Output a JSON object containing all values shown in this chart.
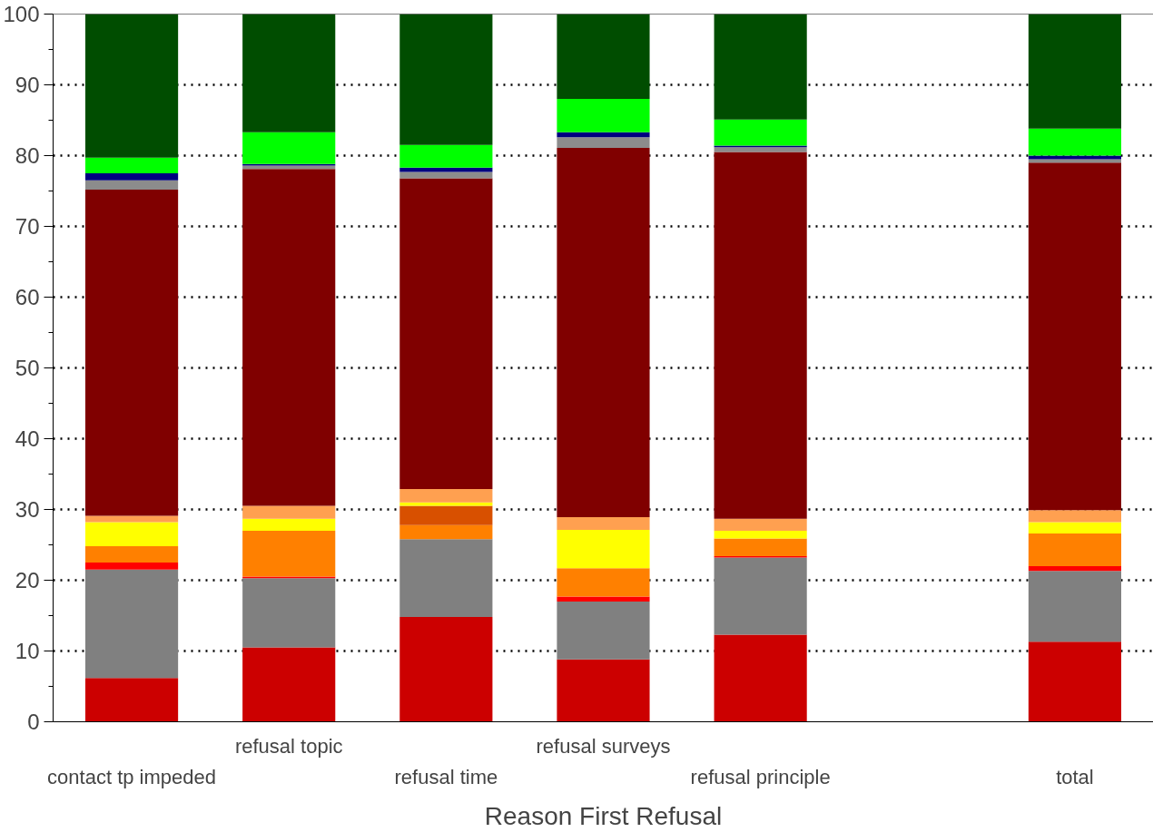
{
  "chart_data": {
    "type": "bar",
    "stacked": true,
    "xlabel": "Reason First Refusal",
    "categories": [
      "contact tp impeded",
      "refusal topic",
      "refusal time",
      "refusal surveys",
      "refusal principle",
      null,
      "total"
    ],
    "ylim": [
      0,
      100
    ],
    "yticks": [
      0,
      10,
      20,
      30,
      40,
      50,
      60,
      70,
      80,
      90,
      100
    ],
    "grid": "y",
    "series": [
      {
        "color": "#cc0000",
        "values": [
          6.2,
          10.5,
          14.8,
          8.8,
          12.3,
          null,
          11.3
        ]
      },
      {
        "color": "#808080",
        "values": [
          15.3,
          9.8,
          11.0,
          8.2,
          10.9,
          null,
          10.0
        ]
      },
      {
        "color": "#ff0000",
        "values": [
          1.0,
          0.2,
          0,
          0.7,
          0.2,
          null,
          0.7
        ]
      },
      {
        "color": "#ff8000",
        "values": [
          2.3,
          6.5,
          2.0,
          4.0,
          2.5,
          null,
          4.6
        ]
      },
      {
        "color": "#d85000",
        "values": [
          0,
          0,
          2.7,
          0,
          0,
          null,
          0
        ]
      },
      {
        "color": "#ffff00",
        "values": [
          3.4,
          1.7,
          0.5,
          5.4,
          1.1,
          null,
          1.6
        ]
      },
      {
        "color": "#ffa050",
        "values": [
          0.9,
          1.8,
          1.9,
          1.8,
          1.7,
          null,
          1.7
        ]
      },
      {
        "color": "#800000",
        "values": [
          46.1,
          47.6,
          43.9,
          52.2,
          51.8,
          null,
          49.1
        ]
      },
      {
        "color": "#8c8c8c",
        "values": [
          1.3,
          0.5,
          0.9,
          1.5,
          0.7,
          null,
          0.5
        ]
      },
      {
        "color": "#000080",
        "values": [
          1.0,
          0.2,
          0.6,
          0.7,
          0.2,
          null,
          0.5
        ]
      },
      {
        "color": "#00ff00",
        "values": [
          2.2,
          4.5,
          3.2,
          4.7,
          3.7,
          null,
          3.8
        ]
      },
      {
        "color": "#004d00",
        "values": [
          20.3,
          16.7,
          18.5,
          12.0,
          14.9,
          null,
          16.2
        ]
      }
    ]
  }
}
